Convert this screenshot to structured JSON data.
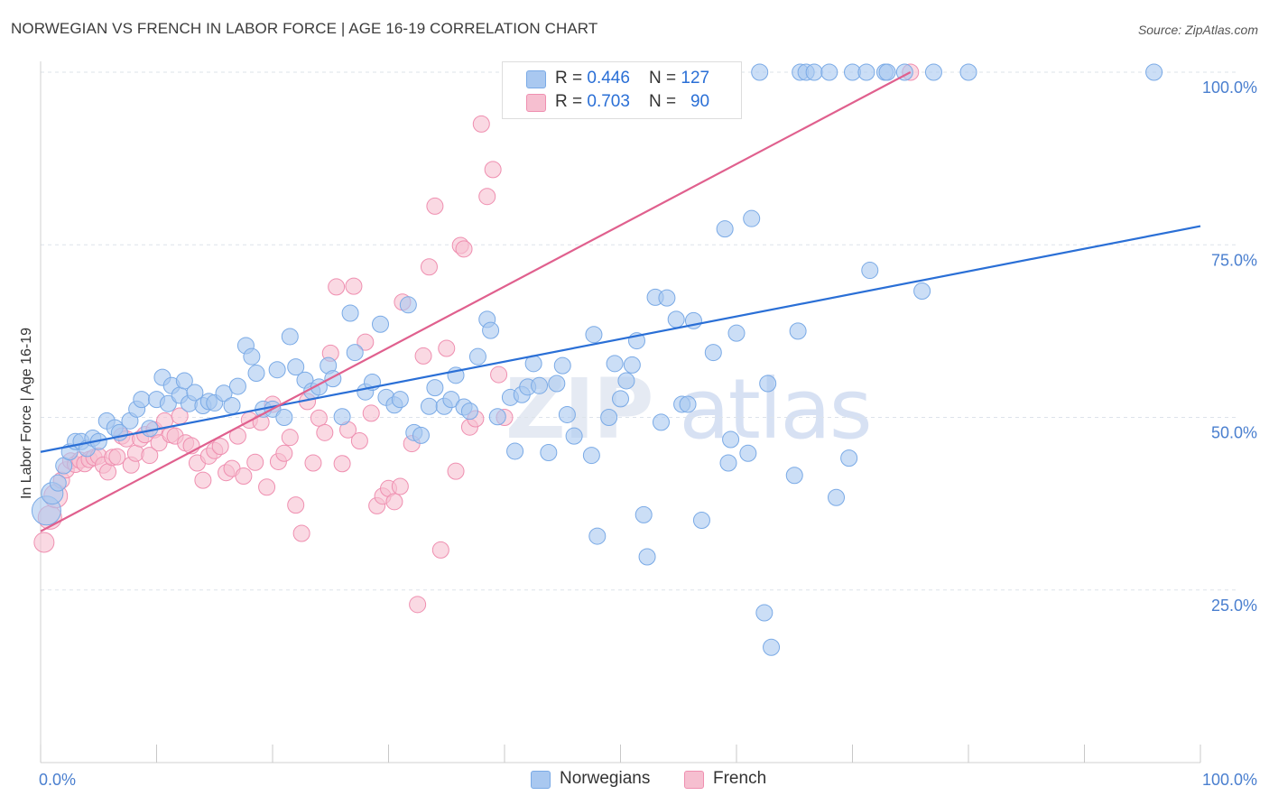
{
  "title": "NORWEGIAN VS FRENCH IN LABOR FORCE | AGE 16-19 CORRELATION CHART",
  "source": "Source: ZipAtlas.com",
  "watermark": {
    "zip": "ZIP",
    "atlas": "atlas"
  },
  "legend": {
    "rows": [
      {
        "r_label": "R = ",
        "r_value": "0.446",
        "n_label": "N = ",
        "n_value": "127",
        "color": "#a9c8f0"
      },
      {
        "r_label": "R = ",
        "r_value": "0.703",
        "n_label": "N = ",
        "n_value": "90",
        "color": "#f6bfd0"
      }
    ]
  },
  "bottom_legend": [
    {
      "label": "Norwegians",
      "color": "#a9c8f0"
    },
    {
      "label": "French",
      "color": "#f6bfd0"
    }
  ],
  "chart_data": {
    "type": "scatter",
    "title": "NORWEGIAN VS FRENCH IN LABOR FORCE | AGE 16-19 CORRELATION CHART",
    "xlabel": "",
    "ylabel": "In Labor Force | Age 16-19",
    "xlim": [
      0,
      100
    ],
    "ylim": [
      0,
      100
    ],
    "x_tick_labels": [
      "0.0%",
      "100.0%"
    ],
    "y_tick_labels": [
      {
        "value": 100,
        "label": "100.0%"
      },
      {
        "value": 75,
        "label": "75.0%"
      },
      {
        "value": 50,
        "label": "50.0%"
      },
      {
        "value": 25,
        "label": "25.0%"
      }
    ],
    "grid": "horizontal dashed",
    "legend_position": "top-center",
    "series": [
      {
        "name": "Norwegians",
        "color": "#7aaae6",
        "fill": "#a9c8f0",
        "line_color": "#2a6fd6",
        "trend": {
          "x": [
            0,
            100
          ],
          "y": [
            45,
            77.7
          ]
        },
        "points": [
          [
            0.5,
            36.5
          ],
          [
            1,
            39
          ],
          [
            1.5,
            40.5
          ],
          [
            2,
            43
          ],
          [
            2.5,
            45
          ],
          [
            3,
            46.5
          ],
          [
            3.5,
            46.5
          ],
          [
            4,
            45.5
          ],
          [
            4.5,
            47
          ],
          [
            5,
            46.5
          ],
          [
            5.7,
            49.5
          ],
          [
            6.4,
            48.5
          ],
          [
            6.8,
            47.8
          ],
          [
            7.7,
            49.5
          ],
          [
            8.3,
            51.2
          ],
          [
            8.7,
            52.6
          ],
          [
            9.4,
            48.4
          ],
          [
            10,
            52.6
          ],
          [
            10.5,
            55.8
          ],
          [
            11,
            52
          ],
          [
            11.3,
            54.6
          ],
          [
            12,
            53.2
          ],
          [
            12.4,
            55.3
          ],
          [
            12.8,
            52
          ],
          [
            13.3,
            53.6
          ],
          [
            14,
            51.7
          ],
          [
            14.5,
            52.3
          ],
          [
            15,
            52.1
          ],
          [
            15.8,
            53.5
          ],
          [
            16.5,
            51.7
          ],
          [
            17,
            54.5
          ],
          [
            17.7,
            60.4
          ],
          [
            18.2,
            58.8
          ],
          [
            18.6,
            56.4
          ],
          [
            19.2,
            51.2
          ],
          [
            20,
            51.2
          ],
          [
            20.4,
            56.9
          ],
          [
            21,
            50
          ],
          [
            21.5,
            61.7
          ],
          [
            22,
            57.3
          ],
          [
            22.8,
            55.4
          ],
          [
            23.4,
            53.8
          ],
          [
            24,
            54.4
          ],
          [
            24.8,
            57.5
          ],
          [
            25.2,
            55.6
          ],
          [
            26,
            50.1
          ],
          [
            26.7,
            65.1
          ],
          [
            27.1,
            59.4
          ],
          [
            28,
            53.7
          ],
          [
            28.6,
            55.1
          ],
          [
            29.3,
            63.5
          ],
          [
            29.8,
            52.9
          ],
          [
            30.5,
            51.8
          ],
          [
            31,
            52.6
          ],
          [
            31.7,
            66.3
          ],
          [
            32.2,
            47.8
          ],
          [
            32.8,
            47.4
          ],
          [
            33.5,
            51.6
          ],
          [
            34,
            54.3
          ],
          [
            34.8,
            51.6
          ],
          [
            35.4,
            52.6
          ],
          [
            35.8,
            56.1
          ],
          [
            36.5,
            51.5
          ],
          [
            37,
            50.9
          ],
          [
            37.7,
            58.8
          ],
          [
            38.5,
            64.2
          ],
          [
            38.8,
            62.6
          ],
          [
            39.4,
            50.1
          ],
          [
            40.5,
            52.9
          ],
          [
            40.9,
            45.1
          ],
          [
            41.5,
            53.3
          ],
          [
            42,
            54.4
          ],
          [
            42.5,
            57.8
          ],
          [
            43,
            54.6
          ],
          [
            43.8,
            44.9
          ],
          [
            44.5,
            54.9
          ],
          [
            45,
            57.5
          ],
          [
            45.4,
            50.4
          ],
          [
            46,
            47.3
          ],
          [
            47.5,
            44.5
          ],
          [
            47.7,
            62
          ],
          [
            48,
            32.8
          ],
          [
            49,
            50
          ],
          [
            49.5,
            57.8
          ],
          [
            50,
            52.7
          ],
          [
            50.5,
            55.3
          ],
          [
            51,
            57.6
          ],
          [
            51.4,
            61.1
          ],
          [
            52,
            35.9
          ],
          [
            52.3,
            29.8
          ],
          [
            53,
            67.4
          ],
          [
            53.5,
            49.3
          ],
          [
            54,
            67.3
          ],
          [
            54.8,
            64.2
          ],
          [
            55.3,
            51.9
          ],
          [
            55.8,
            51.9
          ],
          [
            56.3,
            64
          ],
          [
            57,
            35.1
          ],
          [
            58,
            59.4
          ],
          [
            59,
            77.3
          ],
          [
            59.3,
            43.4
          ],
          [
            59.5,
            46.8
          ],
          [
            60,
            62.2
          ],
          [
            61,
            44.8
          ],
          [
            61.3,
            78.8
          ],
          [
            62.4,
            21.7
          ],
          [
            62.7,
            54.9
          ],
          [
            63,
            16.7
          ],
          [
            65,
            41.6
          ],
          [
            65.3,
            62.5
          ],
          [
            68.6,
            38.4
          ],
          [
            69.7,
            44.1
          ],
          [
            71.5,
            71.3
          ],
          [
            76,
            68.3
          ],
          [
            62,
            100
          ],
          [
            65.5,
            100
          ],
          [
            66,
            100
          ],
          [
            66.7,
            100
          ],
          [
            68,
            100
          ],
          [
            70,
            100
          ],
          [
            71.2,
            100
          ],
          [
            72.8,
            100
          ],
          [
            73,
            100
          ],
          [
            74.5,
            100
          ],
          [
            77,
            100
          ],
          [
            80,
            100
          ],
          [
            96,
            100
          ]
        ]
      },
      {
        "name": "French",
        "color": "#ef8fb0",
        "fill": "#f6bfd0",
        "line_color": "#e0608e",
        "trend": {
          "x": [
            0,
            75
          ],
          "y": [
            33.5,
            100
          ]
        },
        "points": [
          [
            0.3,
            31.9
          ],
          [
            0.8,
            35.5
          ],
          [
            1.3,
            38.6
          ],
          [
            1.8,
            40.9
          ],
          [
            2.2,
            42.4
          ],
          [
            2.6,
            43.7
          ],
          [
            3,
            43.2
          ],
          [
            3.4,
            43.8
          ],
          [
            3.8,
            43.3
          ],
          [
            4.2,
            43.9
          ],
          [
            4.6,
            44.2
          ],
          [
            5,
            44.4
          ],
          [
            5.4,
            43.1
          ],
          [
            5.8,
            42.1
          ],
          [
            6.2,
            44.2
          ],
          [
            6.6,
            44.3
          ],
          [
            7,
            47.3
          ],
          [
            7.4,
            46.9
          ],
          [
            7.8,
            43.1
          ],
          [
            8.2,
            44.8
          ],
          [
            8.6,
            46.9
          ],
          [
            9,
            47.5
          ],
          [
            9.4,
            44.5
          ],
          [
            9.8,
            48.2
          ],
          [
            10.2,
            46.3
          ],
          [
            10.7,
            49.5
          ],
          [
            11.2,
            47.5
          ],
          [
            11.6,
            47.3
          ],
          [
            12,
            50.2
          ],
          [
            12.5,
            46.3
          ],
          [
            13,
            45.9
          ],
          [
            13.5,
            43.4
          ],
          [
            14,
            40.9
          ],
          [
            14.5,
            44.4
          ],
          [
            15,
            45.2
          ],
          [
            15.5,
            45.8
          ],
          [
            16,
            42
          ],
          [
            16.5,
            42.6
          ],
          [
            17,
            47.3
          ],
          [
            17.5,
            41.5
          ],
          [
            18,
            49.6
          ],
          [
            18.5,
            43.5
          ],
          [
            19,
            49.3
          ],
          [
            19.5,
            39.9
          ],
          [
            20,
            51.9
          ],
          [
            20.5,
            43.6
          ],
          [
            21,
            44.8
          ],
          [
            21.5,
            47.1
          ],
          [
            22,
            37.3
          ],
          [
            22.5,
            33.2
          ],
          [
            23,
            52.3
          ],
          [
            23.5,
            43.4
          ],
          [
            24,
            49.9
          ],
          [
            24.5,
            47.8
          ],
          [
            25,
            59.3
          ],
          [
            25.5,
            68.9
          ],
          [
            26,
            43.3
          ],
          [
            26.5,
            48.2
          ],
          [
            27,
            69
          ],
          [
            27.5,
            46.6
          ],
          [
            28,
            60.9
          ],
          [
            28.5,
            50.6
          ],
          [
            29,
            37.2
          ],
          [
            29.5,
            38.6
          ],
          [
            30,
            39.7
          ],
          [
            30.5,
            37.8
          ],
          [
            31,
            40
          ],
          [
            31.2,
            66.7
          ],
          [
            32,
            46.2
          ],
          [
            32.5,
            22.9
          ],
          [
            33,
            58.9
          ],
          [
            33.5,
            71.8
          ],
          [
            34,
            80.6
          ],
          [
            34.5,
            30.8
          ],
          [
            35,
            60
          ],
          [
            35.8,
            42.2
          ],
          [
            36.2,
            74.9
          ],
          [
            36.5,
            74.4
          ],
          [
            37,
            48.6
          ],
          [
            37.5,
            49.8
          ],
          [
            38,
            92.5
          ],
          [
            38.5,
            82
          ],
          [
            39,
            85.9
          ],
          [
            39.5,
            56.2
          ],
          [
            40,
            50
          ],
          [
            40.6,
            100
          ],
          [
            42.2,
            100
          ],
          [
            45.5,
            100
          ],
          [
            46.5,
            100
          ],
          [
            50,
            100
          ],
          [
            56,
            100
          ],
          [
            75,
            100
          ]
        ]
      }
    ]
  }
}
